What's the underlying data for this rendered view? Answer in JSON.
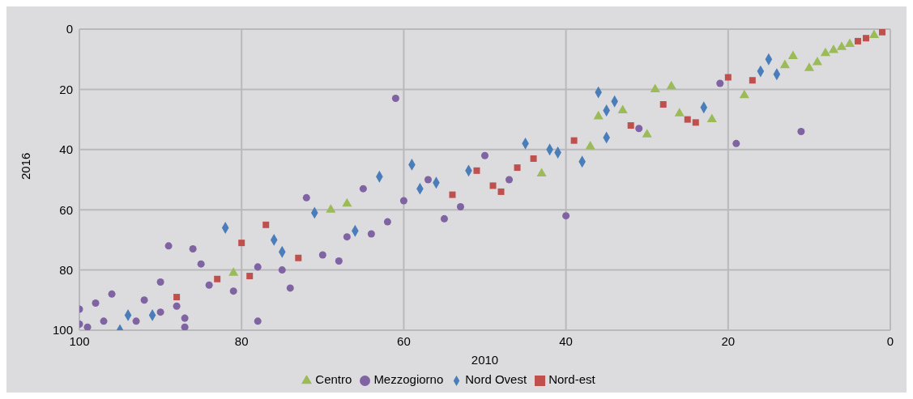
{
  "chart_data": {
    "type": "scatter",
    "xlabel": "2010",
    "ylabel": "2016",
    "xlim": [
      100,
      0
    ],
    "ylim": [
      100,
      0
    ],
    "xticks": [
      100,
      80,
      60,
      40,
      20,
      0
    ],
    "yticks": [
      0,
      20,
      40,
      60,
      80,
      100
    ],
    "grid": true,
    "legend": "bottom",
    "series": [
      {
        "name": "Nord Ovest",
        "color": "#4a7ebb",
        "marker": "diamond",
        "x": [
          95,
          94,
          91,
          82,
          76,
          75,
          71,
          66,
          63,
          59,
          58,
          56,
          52,
          45,
          42,
          41,
          38,
          36,
          35,
          35,
          34,
          23,
          16,
          15,
          14
        ],
        "values": [
          100,
          95,
          95,
          66,
          70,
          74,
          61,
          67,
          49,
          45,
          53,
          51,
          47,
          38,
          40,
          41,
          44,
          21,
          27,
          36,
          24,
          26,
          14,
          10,
          15
        ]
      },
      {
        "name": "Nord-est",
        "color": "#c0504d",
        "marker": "square",
        "x": [
          88,
          83,
          80,
          79,
          77,
          73,
          54,
          51,
          49,
          48,
          46,
          44,
          39,
          32,
          28,
          25,
          24,
          20,
          17,
          4,
          3,
          1
        ],
        "values": [
          89,
          83,
          71,
          82,
          65,
          76,
          55,
          47,
          52,
          54,
          46,
          43,
          37,
          32,
          25,
          30,
          31,
          16,
          17,
          4,
          3,
          1
        ]
      },
      {
        "name": "Centro",
        "color": "#9bbb59",
        "marker": "triangle",
        "x": [
          81,
          69,
          67,
          43,
          37,
          36,
          33,
          30,
          29,
          27,
          26,
          22,
          18,
          13,
          12,
          10,
          9,
          8,
          7,
          6,
          5,
          2
        ],
        "values": [
          81,
          60,
          58,
          48,
          39,
          29,
          27,
          35,
          20,
          19,
          28,
          30,
          22,
          12,
          9,
          13,
          11,
          8,
          7,
          6,
          5,
          2
        ]
      },
      {
        "name": "Mezzogiorno",
        "color": "#8064a2",
        "marker": "circle",
        "x": [
          100,
          100,
          99,
          98,
          97,
          96,
          93,
          92,
          89,
          90,
          90,
          88,
          87,
          87,
          86,
          85,
          84,
          81,
          78,
          78,
          75,
          74,
          72,
          70,
          68,
          67,
          65,
          64,
          62,
          61,
          60,
          57,
          55,
          53,
          50,
          47,
          40,
          31,
          21,
          19,
          11
        ],
        "values": [
          93,
          98,
          99,
          91,
          97,
          88,
          97,
          90,
          72,
          84,
          94,
          92,
          96,
          99,
          73,
          78,
          85,
          87,
          79,
          97,
          80,
          86,
          56,
          75,
          77,
          69,
          53,
          68,
          64,
          23,
          57,
          50,
          63,
          59,
          42,
          50,
          62,
          33,
          18,
          38,
          34
        ]
      }
    ]
  }
}
